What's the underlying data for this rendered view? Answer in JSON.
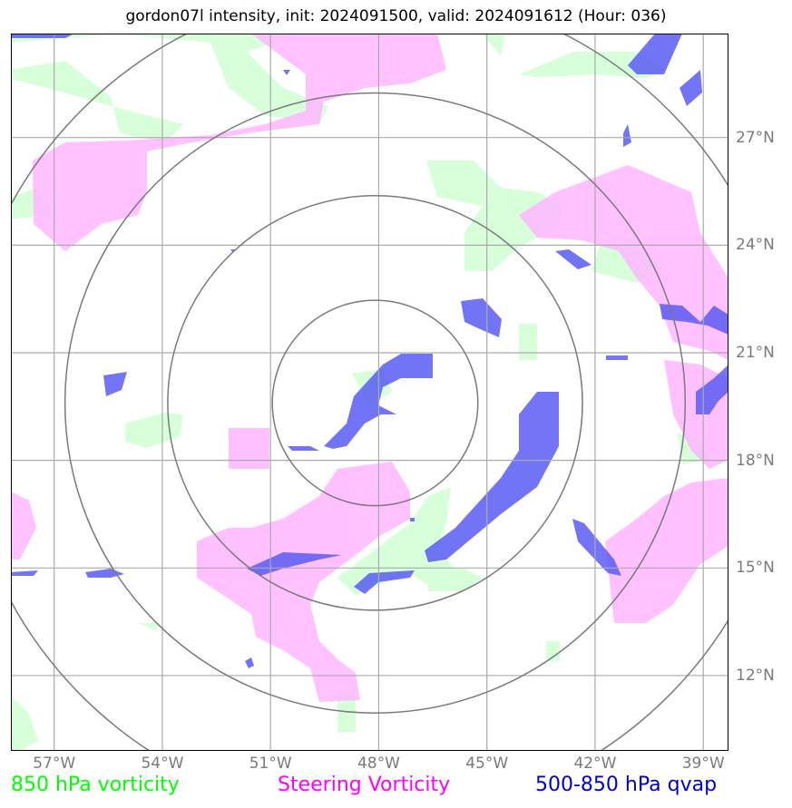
{
  "title": "gordon07l intensity, init: 2024091500, valid: 2024091612 (Hour: 036)",
  "map": {
    "lon_range": [
      -58.2,
      -38.3
    ],
    "lat_range": [
      9.9,
      29.9
    ],
    "lon_ticks": [
      -57,
      -54,
      -51,
      -48,
      -45,
      -42,
      -39
    ],
    "lat_ticks": [
      12,
      15,
      18,
      21,
      24,
      27
    ],
    "lon_labels": [
      "57°W",
      "54°W",
      "51°W",
      "48°W",
      "45°W",
      "42°W",
      "39°W"
    ],
    "lat_labels": [
      "12°N",
      "15°N",
      "18°N",
      "21°N",
      "24°N",
      "27°N"
    ],
    "grid": true,
    "storm_center": {
      "lon": -48.1,
      "lat": 19.6
    },
    "range_rings_deg": [
      2.85,
      5.75,
      8.6,
      11.5
    ],
    "colors": {
      "vorticity_850": "#cfffd4",
      "steering_vorticity": "#ffb6ff",
      "qvap": "#5a5cf5",
      "grid": "#aaaaaa",
      "rings": "#7a7a7a"
    }
  },
  "legend": {
    "vorticity_850": {
      "label": "850 hPa vorticity",
      "color": "#00ff00"
    },
    "steering_vorticity": {
      "label": "Steering Vorticity",
      "color": "#ff00ff"
    },
    "qvap": {
      "label": "500-850 hPa qvap",
      "color": "#0000cc"
    }
  }
}
